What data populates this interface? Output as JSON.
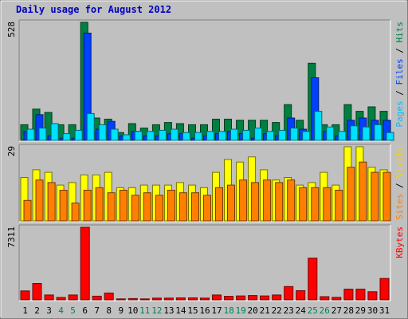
{
  "chart_data": {
    "type": "bar",
    "title": "Daily usage for August 2012",
    "days": [
      "1",
      "2",
      "3",
      "4",
      "5",
      "6",
      "7",
      "8",
      "9",
      "10",
      "11",
      "12",
      "13",
      "14",
      "15",
      "16",
      "17",
      "18",
      "19",
      "20",
      "21",
      "22",
      "23",
      "24",
      "25",
      "26",
      "27",
      "28",
      "29",
      "30",
      "31"
    ],
    "weekend_days": [
      "4",
      "5",
      "11",
      "12",
      "18",
      "19",
      "25",
      "26"
    ],
    "panels": [
      {
        "id": "hits",
        "ymax_label": "528",
        "ymax": 528,
        "series": [
          {
            "name": "Hits",
            "color": "#008040",
            "values": [
              70,
              140,
              125,
              70,
              70,
              528,
              100,
              95,
              35,
              75,
              55,
              70,
              80,
              75,
              70,
              70,
              95,
              95,
              90,
              90,
              90,
              80,
              160,
              90,
              345,
              70,
              70,
              160,
              130,
              150,
              130
            ]
          },
          {
            "name": "Files",
            "color": "#0040ff",
            "values": [
              40,
              115,
              20,
              10,
              10,
              480,
              50,
              85,
              20,
              40,
              20,
              20,
              30,
              30,
              10,
              20,
              30,
              40,
              30,
              10,
              30,
              20,
              100,
              50,
              280,
              40,
              20,
              90,
              100,
              90,
              90
            ]
          },
          {
            "name": "Pages",
            "color": "#00e0ff",
            "values": [
              50,
              55,
              75,
              30,
              45,
              120,
              70,
              50,
              25,
              40,
              40,
              45,
              50,
              35,
              35,
              40,
              40,
              50,
              45,
              55,
              40,
              45,
              55,
              40,
              130,
              60,
              40,
              65,
              60,
              70,
              35
            ]
          }
        ],
        "legend": [
          {
            "text": "Pages",
            "color": "#00c0ff"
          },
          {
            "text": " / ",
            "color": "#000000"
          },
          {
            "text": "Files",
            "color": "#0040ff"
          },
          {
            "text": " / ",
            "color": "#000000"
          },
          {
            "text": "Hits",
            "color": "#008040"
          }
        ]
      },
      {
        "id": "visits",
        "ymax_label": "29",
        "ymax": 29,
        "series": [
          {
            "name": "Visits",
            "color": "#ffff00",
            "values": [
              17,
              20,
              19,
              14,
              15,
              18,
              18,
              19,
              13,
              13,
              14,
              14,
              14,
              15,
              14,
              13,
              19,
              24,
              23,
              25,
              20,
              16,
              17,
              14,
              15,
              19,
              14,
              29,
              29,
              21,
              20
            ]
          },
          {
            "name": "Sites",
            "color": "#ff8000",
            "values": [
              8,
              16,
              15,
              12,
              7,
              12,
              13,
              11,
              12,
              10,
              11,
              10,
              12,
              11,
              11,
              10,
              13,
              14,
              16,
              15,
              16,
              15,
              16,
              13,
              13,
              13,
              12,
              21,
              23,
              19,
              19
            ]
          }
        ],
        "legend": [
          {
            "text": "Sites",
            "color": "#ff8000"
          },
          {
            "text": " / ",
            "color": "#000000"
          },
          {
            "text": "Visits",
            "color": "#ffd000"
          }
        ]
      },
      {
        "id": "kbytes",
        "ymax_label": "7311",
        "ymax": 7311,
        "series": [
          {
            "name": "KBytes",
            "color": "#ff0000",
            "values": [
              900,
              1650,
              490,
              240,
              490,
              7311,
              370,
              690,
              100,
              130,
              100,
              180,
              180,
              200,
              200,
              180,
              490,
              350,
              390,
              430,
              390,
              490,
              1340,
              920,
              4200,
              320,
              250,
              1080,
              1080,
              820,
              2150
            ]
          }
        ],
        "legend": [
          {
            "text": "KBytes",
            "color": "#ff0000"
          }
        ]
      }
    ]
  }
}
